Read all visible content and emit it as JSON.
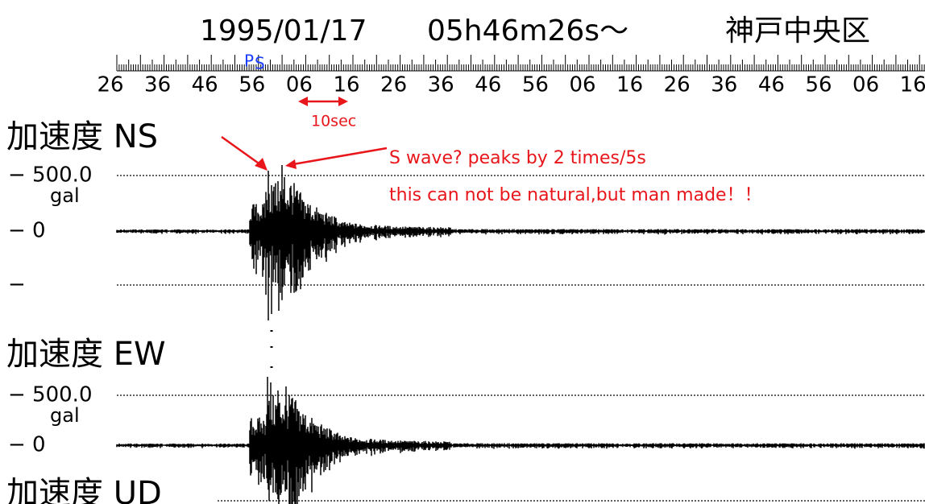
{
  "header": {
    "date": "1995/01/17",
    "time": "05h46m26s～",
    "place": "神戸中央区"
  },
  "timeline": {
    "ticks": [
      "26",
      "36",
      "46",
      "56",
      "06",
      "16",
      "26",
      "36",
      "46",
      "56",
      "06",
      "16",
      "26",
      "36",
      "46",
      "56",
      "06",
      "16"
    ],
    "phase_markers": [
      "P",
      "S"
    ]
  },
  "annotations": {
    "interval": "10sec",
    "note_line1": "S wave? peaks by 2 times/5s",
    "note_line2": "this can not be natural,but man made！！"
  },
  "channels": [
    {
      "label": "加速度 NS",
      "scale": "− 500.0",
      "unit": "gal",
      "zero": "− 0",
      "lower": "−"
    },
    {
      "label": "加速度 EW",
      "scale": "− 500.0",
      "unit": "gal",
      "zero": "− 0"
    },
    {
      "label": "加速度 UD"
    }
  ]
}
